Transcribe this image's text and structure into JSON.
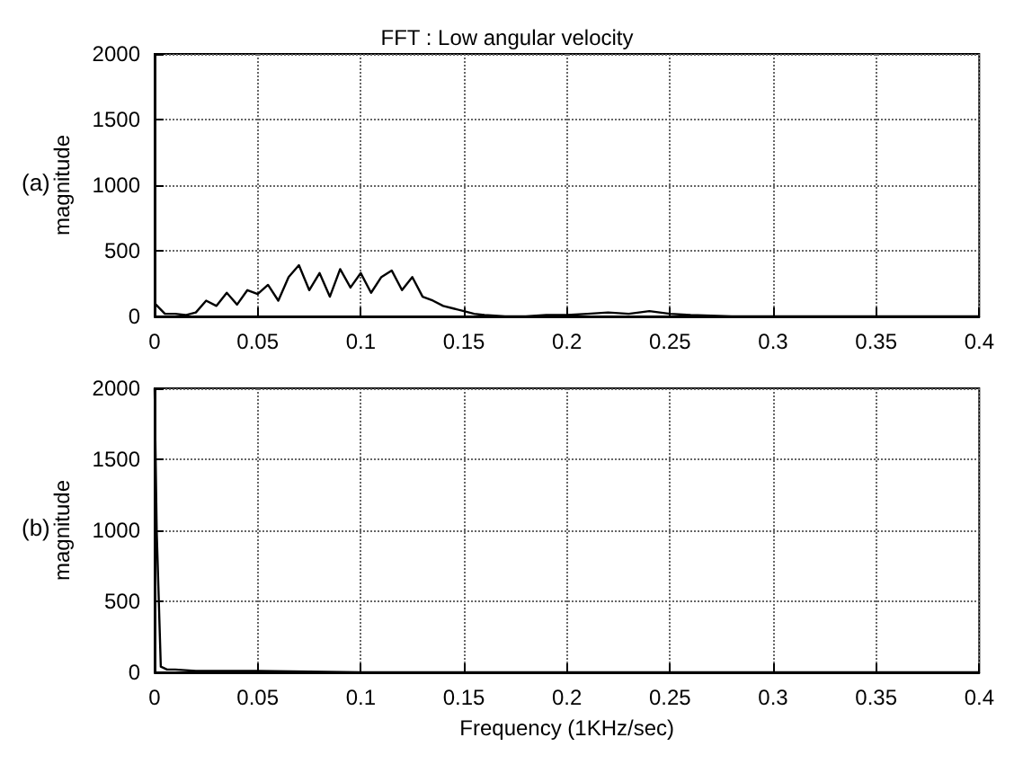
{
  "chart_data": [
    {
      "type": "line",
      "title": "FFT : Low angular velocity",
      "ylabel": "magnitude",
      "annotations": [
        "(a)"
      ],
      "x": [
        0,
        0.005,
        0.01,
        0.015,
        0.02,
        0.025,
        0.03,
        0.035,
        0.04,
        0.045,
        0.05,
        0.055,
        0.06,
        0.065,
        0.07,
        0.075,
        0.08,
        0.085,
        0.09,
        0.095,
        0.1,
        0.105,
        0.11,
        0.115,
        0.12,
        0.125,
        0.13,
        0.135,
        0.14,
        0.145,
        0.15,
        0.155,
        0.16,
        0.17,
        0.18,
        0.19,
        0.2,
        0.21,
        0.22,
        0.23,
        0.24,
        0.25,
        0.26,
        0.28,
        0.3,
        0.32,
        0.34,
        0.36,
        0.38,
        0.4
      ],
      "series": [
        {
          "color": "#000000",
          "values": [
            100,
            20,
            20,
            10,
            30,
            120,
            80,
            180,
            90,
            200,
            170,
            240,
            120,
            300,
            390,
            200,
            330,
            150,
            360,
            220,
            330,
            180,
            300,
            350,
            200,
            300,
            150,
            120,
            80,
            60,
            40,
            20,
            10,
            0,
            0,
            10,
            10,
            20,
            30,
            20,
            40,
            20,
            10,
            0,
            0,
            0,
            0,
            0,
            0,
            0
          ]
        }
      ],
      "xlim": [
        0,
        0.4
      ],
      "xticks": [
        0,
        0.05,
        0.1,
        0.15,
        0.2,
        0.25,
        0.3,
        0.35,
        0.4
      ],
      "ylim": [
        0,
        2000
      ],
      "yticks": [
        0,
        500,
        1000,
        1500,
        2000
      ],
      "grid": true,
      "marker": "none",
      "line_style": "solid"
    },
    {
      "type": "line",
      "xlabel": "Frequency (1KHz/sec)",
      "ylabel": "magnitude",
      "annotations": [
        "(b)"
      ],
      "x": [
        0,
        0.001,
        0.003,
        0.006,
        0.01,
        0.02,
        0.05,
        0.1,
        0.15,
        0.2,
        0.25,
        0.3,
        0.35,
        0.4
      ],
      "series": [
        {
          "color": "#000000",
          "values": [
            2000,
            1000,
            40,
            20,
            20,
            10,
            10,
            0,
            0,
            0,
            0,
            0,
            0,
            0
          ]
        }
      ],
      "xlim": [
        0,
        0.4
      ],
      "xticks": [
        0,
        0.05,
        0.1,
        0.15,
        0.2,
        0.25,
        0.3,
        0.35,
        0.4
      ],
      "ylim": [
        0,
        2000
      ],
      "yticks": [
        0,
        500,
        1000,
        1500,
        2000
      ],
      "grid": true,
      "marker": "none",
      "line_style": "solid"
    }
  ]
}
